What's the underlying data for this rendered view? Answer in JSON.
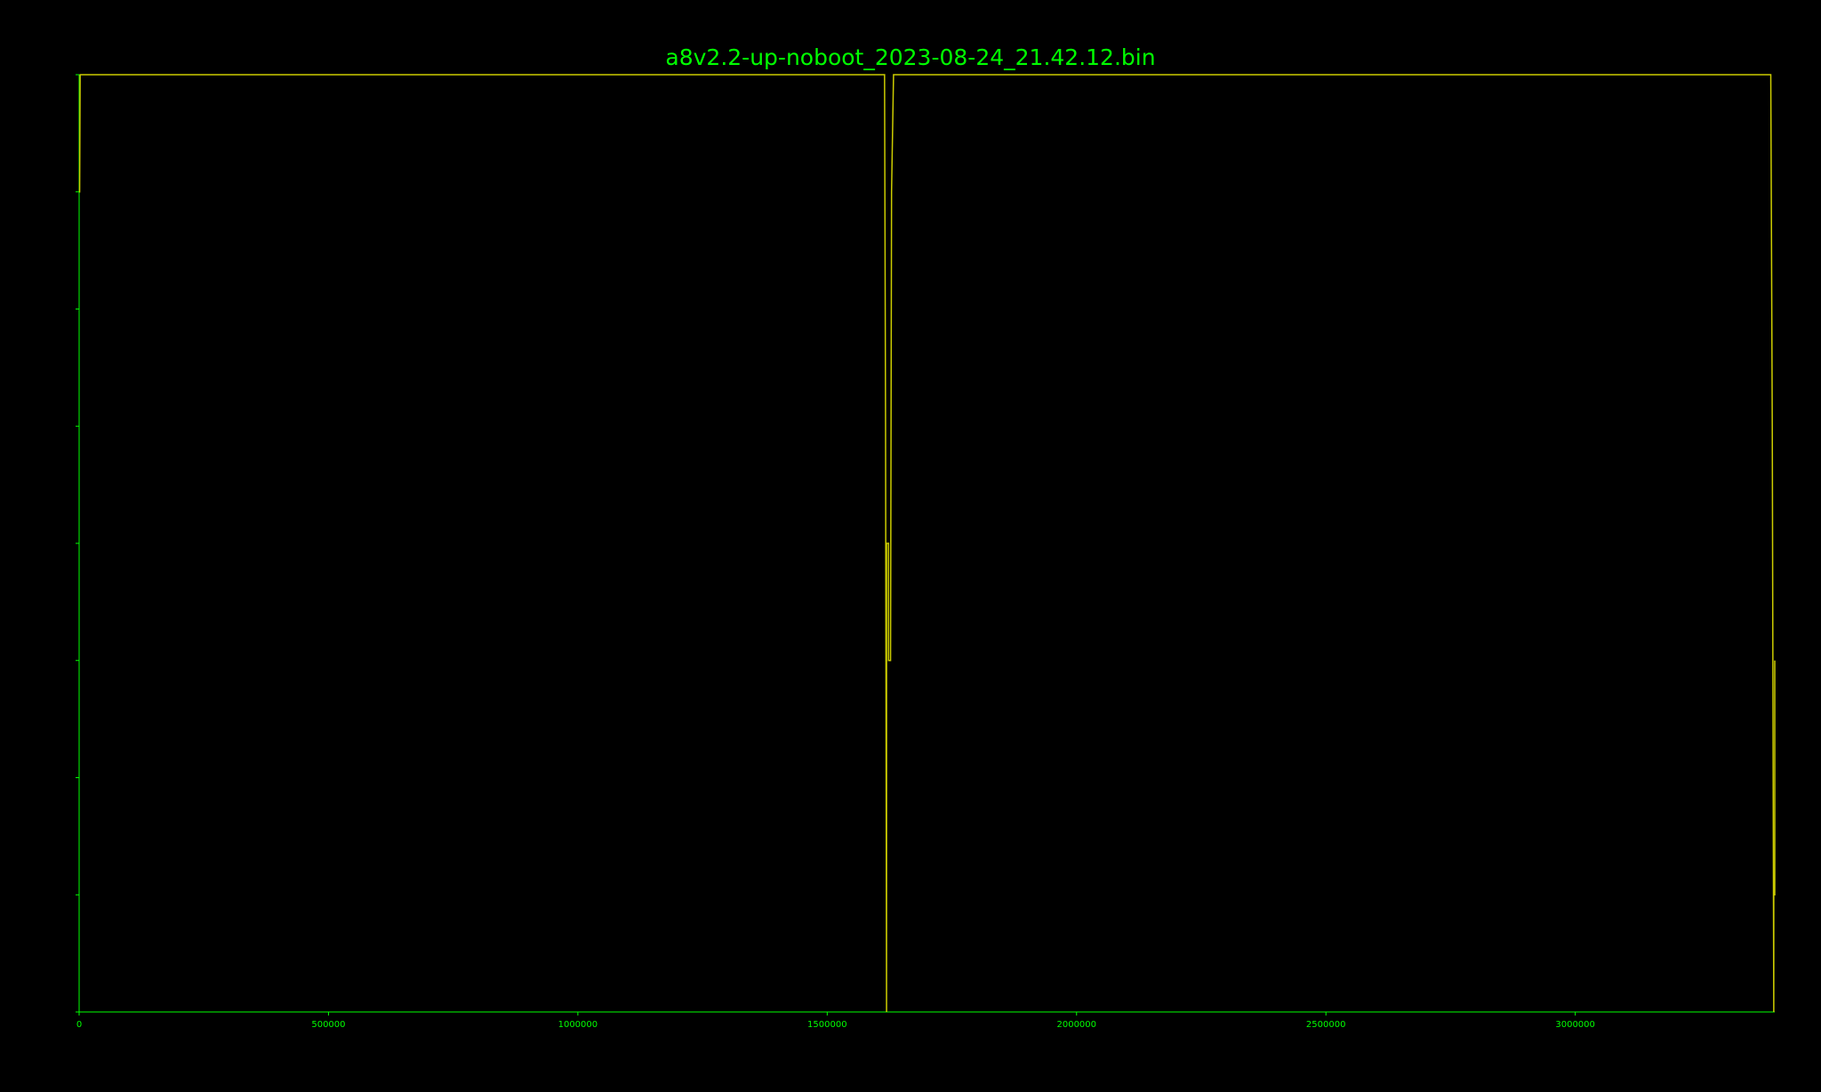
{
  "chart_data": {
    "type": "line",
    "title": "a8v2.2-up-noboot_2023-08-24_21.42.12.bin",
    "xlabel": "",
    "ylabel": "",
    "xlim": [
      0,
      3400000
    ],
    "ylim": [
      0,
      8
    ],
    "x_ticks": [
      0,
      500000,
      1000000,
      1500000,
      2000000,
      2500000,
      3000000
    ],
    "x_tick_labels": [
      "0",
      "500000",
      "1000000",
      "1500000",
      "2000000",
      "2500000",
      "3000000"
    ],
    "y_ticks": [
      0,
      1,
      2,
      3,
      4,
      5,
      6,
      7,
      8
    ],
    "y_tick_labels_visible": false,
    "grid": false,
    "legend": "none",
    "colors": {
      "background": "#000000",
      "axes": "#00ff00",
      "text": "#00ff00",
      "line": "#cccc00"
    },
    "series": [
      {
        "x": [
          0,
          1000,
          2000,
          2000,
          1615000,
          1617000,
          1619000,
          1619000,
          1621000,
          1623000,
          1623000,
          1625000,
          1627000,
          1629000,
          1633000,
          1633000,
          3392000,
          3395000,
          3398000,
          3398000,
          3400000,
          3400000
        ],
        "y": [
          7,
          7,
          8,
          8,
          8,
          5,
          0,
          4,
          4,
          4,
          3,
          3,
          3,
          7,
          8,
          8,
          8,
          5,
          0,
          1,
          1,
          3
        ]
      }
    ]
  }
}
